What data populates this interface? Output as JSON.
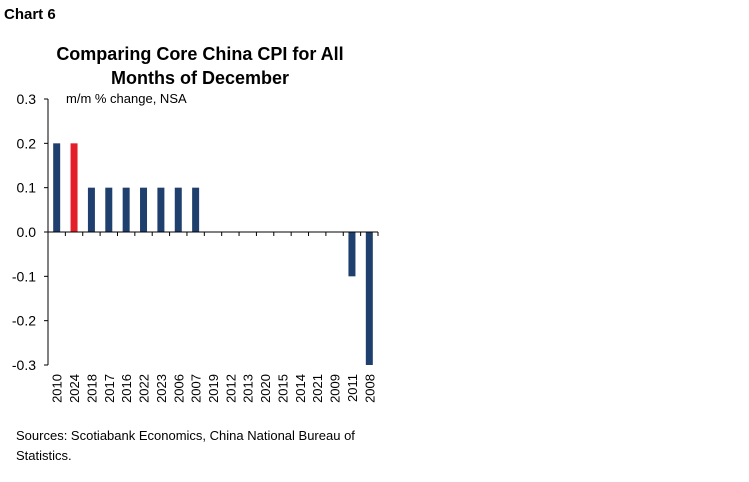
{
  "chart_label": "Chart 6",
  "chart_data": {
    "type": "bar",
    "title": "Comparing Core China CPI for All Months of December",
    "ylabel": "m/m % change, NSA",
    "xlabel": "",
    "categories": [
      "2010",
      "2024",
      "2018",
      "2017",
      "2016",
      "2022",
      "2023",
      "2006",
      "2007",
      "2019",
      "2012",
      "2013",
      "2020",
      "2015",
      "2014",
      "2021",
      "2009",
      "2011",
      "2008"
    ],
    "values": [
      0.2,
      0.2,
      0.1,
      0.1,
      0.1,
      0.1,
      0.1,
      0.1,
      0.1,
      0.0,
      0.0,
      0.0,
      0.0,
      0.0,
      0.0,
      0.0,
      0.0,
      -0.1,
      -0.3
    ],
    "highlight_category": "2024",
    "bar_color": "#1f3f6e",
    "highlight_color": "#e3202a",
    "ylim": [
      -0.3,
      0.3
    ],
    "yticks": [
      "0.3",
      "0.2",
      "0.1",
      "0.0",
      "-0.1",
      "-0.2",
      "-0.3"
    ],
    "grid": false,
    "legend": "none"
  },
  "source": "Sources: Scotiabank Economics, China National Bureau of Statistics."
}
